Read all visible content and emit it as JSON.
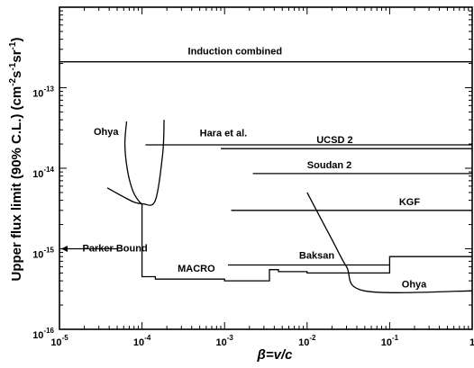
{
  "chart_data": {
    "type": "line",
    "title": "",
    "xlabel": "β=v/c",
    "ylabel": "Upper flux limit (90% C.L.)  (cm⁻²s⁻¹sr⁻¹)",
    "xscale": "log",
    "yscale": "log",
    "xlim": [
      1e-05,
      1
    ],
    "ylim": [
      1e-16,
      1e-12
    ],
    "x_ticks": [
      {
        "value": 1e-05,
        "base": "10",
        "exp": "-5"
      },
      {
        "value": 0.0001,
        "base": "10",
        "exp": "-4"
      },
      {
        "value": 0.001,
        "base": "10",
        "exp": "-3"
      },
      {
        "value": 0.01,
        "base": "10",
        "exp": "-2"
      },
      {
        "value": 0.1,
        "base": "10",
        "exp": "-1"
      },
      {
        "value": 1,
        "base": "1",
        "exp": ""
      }
    ],
    "y_ticks": [
      {
        "value": 1e-16,
        "base": "10",
        "exp": "-16"
      },
      {
        "value": 1e-15,
        "base": "10",
        "exp": "-15"
      },
      {
        "value": 1e-14,
        "base": "10",
        "exp": "-14"
      },
      {
        "value": 1e-13,
        "base": "10",
        "exp": "-13"
      }
    ],
    "grid": false,
    "series": [
      {
        "name": "Induction combined",
        "x": [
          1e-05,
          1
        ],
        "y": [
          2.1e-13,
          2.1e-13
        ]
      },
      {
        "name": "Hara et al.",
        "x": [
          0.00011,
          0.001,
          1
        ],
        "y": [
          1.95e-14,
          1.95e-14,
          1.95e-14
        ]
      },
      {
        "name": "UCSD 2",
        "x": [
          0.0009,
          1
        ],
        "y": [
          1.75e-14,
          1.75e-14
        ]
      },
      {
        "name": "Soudan 2",
        "x": [
          0.0022,
          1
        ],
        "y": [
          8.6e-15,
          8.6e-15
        ]
      },
      {
        "name": "KGF",
        "x": [
          0.0012,
          1
        ],
        "y": [
          3e-15,
          3e-15
        ]
      },
      {
        "name": "Baksan",
        "x": [
          0.0011,
          0.1
        ],
        "y": [
          6.3e-16,
          6.3e-16
        ]
      },
      {
        "name": "Parker Bound",
        "x": [
          1e-05,
          5e-05
        ],
        "y": [
          1e-15,
          1e-15
        ]
      },
      {
        "name": "MACRO",
        "x": [
          0.0001,
          0.0001,
          0.000145,
          0.000145,
          0.001,
          0.001,
          0.0035,
          0.0035,
          0.0045,
          0.0045,
          0.01,
          0.01,
          0.1,
          0.1,
          1
        ],
        "y": [
          3.6e-15,
          4.5e-16,
          4.5e-16,
          4.2e-16,
          4.2e-16,
          4e-16,
          4e-16,
          5.5e-16,
          5.5e-16,
          5.2e-16,
          5.2e-16,
          5e-16,
          5e-16,
          8e-16,
          8e-16
        ]
      },
      {
        "name": "Ohya",
        "x": [
          6.5e-05,
          6.2e-05,
          6.6e-05,
          7.6e-05,
          9e-05,
          0.000105,
          0.000145,
          0.000178,
          0.000185
        ],
        "y": [
          3.8e-14,
          2e-14,
          1e-14,
          5.5e-15,
          4e-15,
          3.6e-15,
          4e-15,
          1.5e-14,
          4e-14
        ]
      },
      {
        "name": "Ohya low-velocity branch",
        "x": [
          3.8e-05,
          6e-05,
          8e-05,
          0.0001
        ],
        "y": [
          5.7e-15,
          4.4e-15,
          3.8e-15,
          3.6e-15
        ]
      },
      {
        "name": "Ohya",
        "x": [
          0.01,
          0.02,
          0.03,
          0.05,
          1
        ],
        "y": [
          5e-15,
          1.3e-15,
          6e-16,
          3e-16,
          3e-16
        ]
      }
    ],
    "annotations": [
      {
        "text": "Induction combined",
        "x": 0.00036,
        "y": 2.6e-13
      },
      {
        "text": "Ohya",
        "x": 2.6e-05,
        "y": 2.6e-14
      },
      {
        "text": "Hara et al.",
        "x": 0.0005,
        "y": 2.5e-14
      },
      {
        "text": "UCSD 2",
        "x": 0.013,
        "y": 2.05e-14
      },
      {
        "text": "Soudan 2",
        "x": 0.01,
        "y": 1e-14
      },
      {
        "text": "KGF",
        "x": 0.13,
        "y": 3.5e-15
      },
      {
        "text": "Baksan",
        "x": 0.008,
        "y": 7.5e-16
      },
      {
        "text": "MACRO",
        "x": 0.00027,
        "y": 5.2e-16
      },
      {
        "text": "Ohya",
        "x": 0.14,
        "y": 3.3e-16
      },
      {
        "text": "Parker Bound",
        "x": 1.9e-05,
        "y": 9.2e-16
      }
    ]
  }
}
